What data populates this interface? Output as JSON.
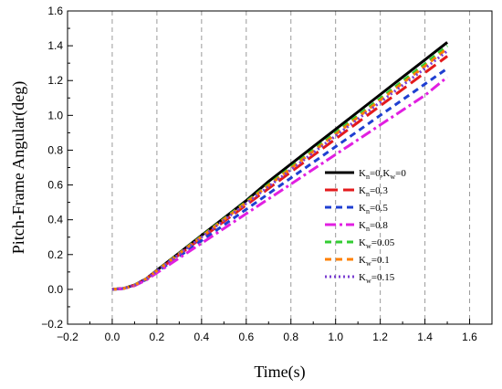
{
  "chart_data": {
    "type": "line",
    "title": "",
    "xlabel": "Time(s)",
    "ylabel": "Pitch-Frame Angular(deg)",
    "xlim": [
      -0.2,
      1.7
    ],
    "ylim": [
      -0.2,
      1.6
    ],
    "xticks": [
      -0.2,
      0.0,
      0.2,
      0.4,
      0.6,
      0.8,
      1.0,
      1.2,
      1.4,
      1.6
    ],
    "yticks": [
      -0.2,
      0.0,
      0.2,
      0.4,
      0.6,
      0.8,
      1.0,
      1.2,
      1.4,
      1.6
    ],
    "xtick_labels": [
      "−0.2",
      "0.0",
      "0.2",
      "0.4",
      "0.6",
      "0.8",
      "1.0",
      "1.2",
      "1.4",
      "1.6"
    ],
    "ytick_labels": [
      "−0.2",
      "0.0",
      "0.2",
      "0.4",
      "0.6",
      "0.8",
      "1.0",
      "1.2",
      "1.4",
      "1.6"
    ],
    "grid": "vertical-dashed",
    "legend_position": "right-center",
    "x": [
      0.0,
      0.05,
      0.1,
      0.15,
      0.2,
      0.3,
      0.4,
      0.5,
      0.6,
      0.7,
      0.8,
      0.9,
      1.0,
      1.1,
      1.2,
      1.3,
      1.4,
      1.5
    ],
    "series": [
      {
        "name": "Kn=0,Kw=0",
        "label_parts": [
          "K",
          "n",
          "=0,K",
          "w",
          "=0"
        ],
        "color": "#000000",
        "dash": "solid",
        "width": 3,
        "values": [
          0.0,
          0.005,
          0.025,
          0.06,
          0.11,
          0.21,
          0.31,
          0.41,
          0.51,
          0.62,
          0.72,
          0.82,
          0.92,
          1.02,
          1.12,
          1.22,
          1.32,
          1.42
        ]
      },
      {
        "name": "Kn=0.3",
        "label_parts": [
          "K",
          "n",
          "=0.3"
        ],
        "color": "#e41a1c",
        "dash": "long-dash",
        "width": 3,
        "values": [
          0.0,
          0.005,
          0.024,
          0.058,
          0.105,
          0.2,
          0.295,
          0.39,
          0.485,
          0.58,
          0.675,
          0.77,
          0.865,
          0.96,
          1.055,
          1.15,
          1.245,
          1.34
        ]
      },
      {
        "name": "Kn=0.5",
        "label_parts": [
          "K",
          "n",
          "=0.5"
        ],
        "color": "#1f3fd1",
        "dash": "dash",
        "width": 3,
        "values": [
          0.0,
          0.005,
          0.023,
          0.055,
          0.1,
          0.19,
          0.28,
          0.37,
          0.46,
          0.55,
          0.64,
          0.73,
          0.82,
          0.91,
          1.0,
          1.09,
          1.18,
          1.27
        ]
      },
      {
        "name": "Kn=0.8",
        "label_parts": [
          "K",
          "n",
          "=0.8"
        ],
        "color": "#e11fe1",
        "dash": "dash-dot",
        "width": 3,
        "values": [
          0.0,
          0.004,
          0.021,
          0.052,
          0.095,
          0.18,
          0.265,
          0.35,
          0.435,
          0.52,
          0.605,
          0.69,
          0.775,
          0.86,
          0.945,
          1.03,
          1.115,
          1.22
        ]
      },
      {
        "name": "Kw=0.05",
        "label_parts": [
          "K",
          "w",
          "=0.05"
        ],
        "color": "#33cc33",
        "dash": "dash",
        "width": 3,
        "values": [
          0.0,
          0.005,
          0.025,
          0.06,
          0.108,
          0.207,
          0.306,
          0.405,
          0.504,
          0.603,
          0.702,
          0.801,
          0.9,
          0.999,
          1.098,
          1.197,
          1.296,
          1.4
        ]
      },
      {
        "name": "Kw=0.1",
        "label_parts": [
          "K",
          "w",
          "=0.1"
        ],
        "color": "#ff8000",
        "dash": "dash",
        "width": 3,
        "values": [
          0.0,
          0.005,
          0.024,
          0.059,
          0.107,
          0.205,
          0.303,
          0.401,
          0.499,
          0.597,
          0.695,
          0.793,
          0.891,
          0.989,
          1.087,
          1.185,
          1.283,
          1.385
        ]
      },
      {
        "name": "Kw=0.15",
        "label_parts": [
          "K",
          "w",
          "=0.15"
        ],
        "color": "#7b3fd1",
        "dash": "dot",
        "width": 3,
        "values": [
          0.0,
          0.005,
          0.024,
          0.058,
          0.106,
          0.203,
          0.3,
          0.397,
          0.494,
          0.591,
          0.688,
          0.785,
          0.882,
          0.979,
          1.076,
          1.173,
          1.27,
          1.37
        ]
      }
    ]
  }
}
